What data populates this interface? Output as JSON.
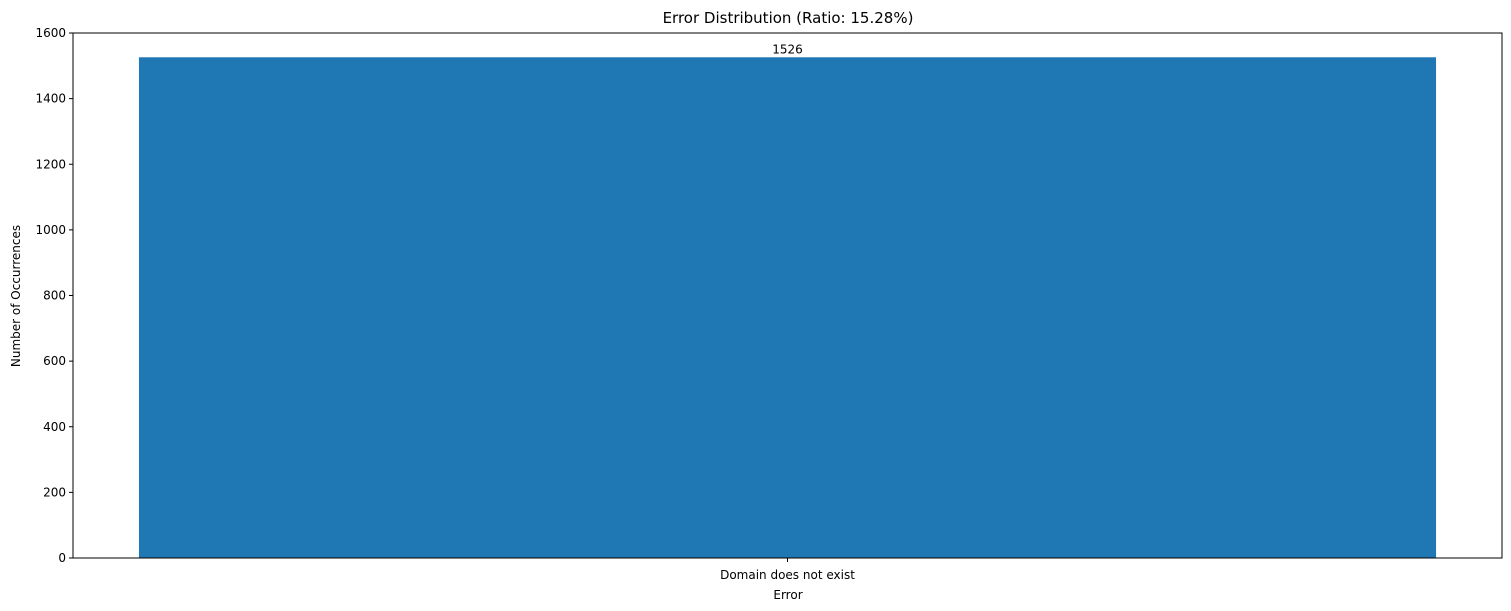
{
  "chart_data": {
    "type": "bar",
    "title": "Error Distribution (Ratio: 15.28%)",
    "xlabel": "Error",
    "ylabel": "Number of Occurrences",
    "categories": [
      "Domain does not exist"
    ],
    "values": [
      1526
    ],
    "data_labels": [
      "1526"
    ],
    "ylim": [
      0,
      1600
    ],
    "yticks": [
      0,
      200,
      400,
      600,
      800,
      1000,
      1200,
      1400,
      1600
    ],
    "ytick_labels": [
      "0",
      "200",
      "400",
      "600",
      "800",
      "1000",
      "1200",
      "1400",
      "1600"
    ],
    "grid": false,
    "legend": "none",
    "bar_color": "#1f77b4"
  }
}
